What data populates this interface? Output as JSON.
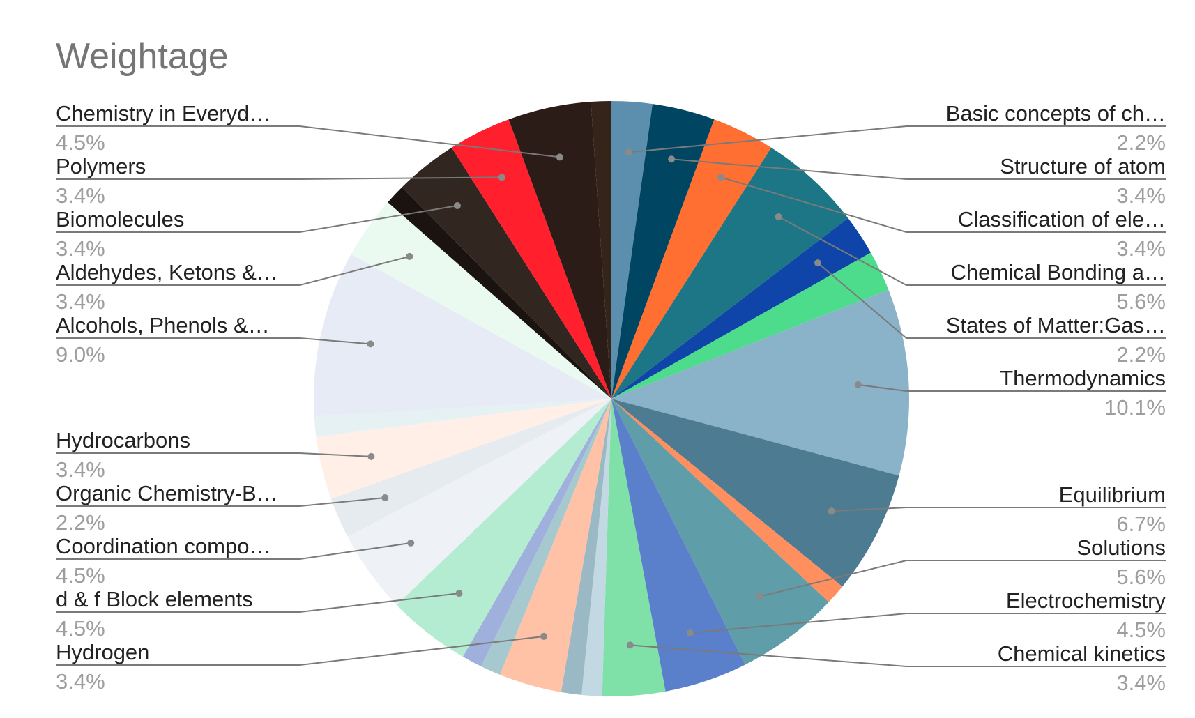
{
  "chart_data": {
    "type": "pie",
    "title": "Weightage",
    "right_labels": [
      {
        "label": "Basic concepts of ch…",
        "value": "2.2%"
      },
      {
        "label": "Structure of atom",
        "value": "3.4%"
      },
      {
        "label": "Classification of ele…",
        "value": "3.4%"
      },
      {
        "label": "Chemical Bonding a…",
        "value": "5.6%"
      },
      {
        "label": "States of Matter:Gas…",
        "value": "2.2%"
      },
      {
        "label": "Thermodynamics",
        "value": "10.1%"
      },
      {
        "label": "Equilibrium",
        "value": "6.7%"
      },
      {
        "label": "Solutions",
        "value": "5.6%"
      },
      {
        "label": "Electrochemistry",
        "value": "4.5%"
      },
      {
        "label": "Chemical kinetics",
        "value": "3.4%"
      }
    ],
    "left_labels": [
      {
        "label": "Chemistry in Everyd…",
        "value": "4.5%"
      },
      {
        "label": "Polymers",
        "value": "3.4%"
      },
      {
        "label": "Biomolecules",
        "value": "3.4%"
      },
      {
        "label": "Aldehydes, Ketons &…",
        "value": "3.4%"
      },
      {
        "label": "Alcohols, Phenols &…",
        "value": "9.0%"
      },
      {
        "label": "Hydrocarbons",
        "value": "3.4%"
      },
      {
        "label": "Organic Chemistry-B…",
        "value": "2.2%"
      },
      {
        "label": "Coordination compo…",
        "value": "4.5%"
      },
      {
        "label": "d & f Block elements",
        "value": "4.5%"
      },
      {
        "label": "Hydrogen",
        "value": "3.4%"
      }
    ],
    "slices": [
      {
        "value": 2.2,
        "color": "#5b8fad"
      },
      {
        "value": 3.4,
        "color": "#004561"
      },
      {
        "value": 3.4,
        "color": "#ff6f31"
      },
      {
        "value": 5.6,
        "color": "#1c7685"
      },
      {
        "value": 2.2,
        "color": "#0f45a8"
      },
      {
        "value": 2.2,
        "color": "#4cdc8b"
      },
      {
        "value": 10.1,
        "color": "#8ab2c8"
      },
      {
        "value": 6.7,
        "color": "#4d7b91"
      },
      {
        "value": 1.1,
        "color": "#ff8f5e"
      },
      {
        "value": 5.6,
        "color": "#5f9ea8"
      },
      {
        "value": 4.5,
        "color": "#5a7fcb"
      },
      {
        "value": 3.4,
        "color": "#7fe0a8"
      },
      {
        "value": 1.1,
        "color": "#c2d8e2"
      },
      {
        "value": 1.1,
        "color": "#9ab9c4"
      },
      {
        "value": 3.4,
        "color": "#ffc2a6"
      },
      {
        "value": 1.1,
        "color": "#a6c8cf"
      },
      {
        "value": 1.1,
        "color": "#9fb0dd"
      },
      {
        "value": 4.5,
        "color": "#b3ecd0"
      },
      {
        "value": 4.5,
        "color": "#eef1f6"
      },
      {
        "value": 2.2,
        "color": "#e6ebef"
      },
      {
        "value": 3.4,
        "color": "#ffefe7"
      },
      {
        "value": 1.1,
        "color": "#e6f1f4"
      },
      {
        "value": 9.0,
        "color": "#e7ebf5"
      },
      {
        "value": 3.4,
        "color": "#eafaf1"
      },
      {
        "value": 1.1,
        "color": "#1a1310"
      },
      {
        "value": 3.4,
        "color": "#322620"
      },
      {
        "value": 3.4,
        "color": "#ff1f2d"
      },
      {
        "value": 4.5,
        "color": "#2c1c18"
      },
      {
        "value": 1.1,
        "color": "#34241a"
      }
    ]
  }
}
